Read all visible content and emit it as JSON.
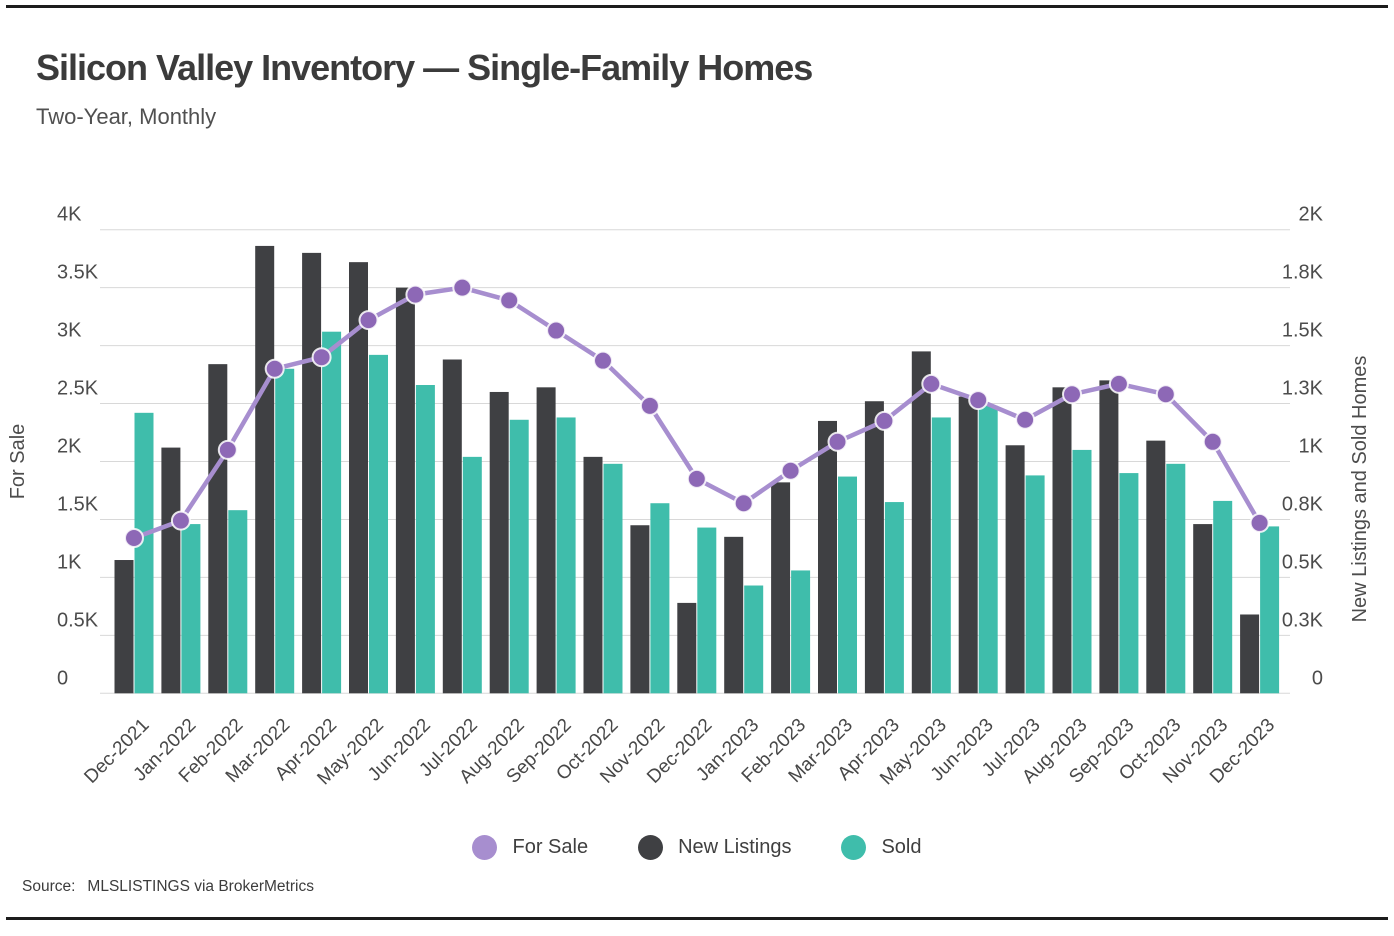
{
  "page": {
    "title": "Silicon Valley Inventory — Single-Family Homes",
    "subtitle": "Two-Year, Monthly",
    "source_label": "Source:",
    "source_value": "MLSLISTINGS via BrokerMetrics"
  },
  "chart_data": {
    "type": "bar+line combo, dual axis",
    "title": "Silicon Valley Inventory — Single-Family Homes",
    "subtitle": "Two-Year, Monthly",
    "grid": true,
    "legend_position": "bottom",
    "categories": [
      "Dec-2021",
      "Jan-2022",
      "Feb-2022",
      "Mar-2022",
      "Apr-2022",
      "May-2022",
      "Jun-2022",
      "Jul-2022",
      "Aug-2022",
      "Sep-2022",
      "Oct-2022",
      "Nov-2022",
      "Dec-2022",
      "Jan-2023",
      "Feb-2023",
      "Mar-2023",
      "Apr-2023",
      "May-2023",
      "Jun-2023",
      "Jul-2023",
      "Aug-2023",
      "Sep-2023",
      "Oct-2023",
      "Nov-2023",
      "Dec-2023"
    ],
    "left_axis": {
      "title": "For Sale",
      "min": 0,
      "max": 4000,
      "tick_step": 500,
      "tick_labels": [
        "0",
        "0.5K",
        "1K",
        "1.5K",
        "2K",
        "2.5K",
        "3K",
        "3.5K",
        "4K"
      ]
    },
    "right_axis": {
      "title": "New Listings and Sold Homes",
      "min": 0,
      "max": 2000,
      "tick_step": 250,
      "tick_labels": [
        "0",
        "0.3K",
        "0.5K",
        "0.8K",
        "1K",
        "1.3K",
        "1.5K",
        "1.8K",
        "2K"
      ]
    },
    "series": [
      {
        "name": "For Sale",
        "type": "line",
        "axis": "left",
        "color": "#a78ecf",
        "point_color": "#8d68b6",
        "values": [
          1340,
          1490,
          2100,
          2800,
          2900,
          3220,
          3440,
          3500,
          3390,
          3130,
          2870,
          2480,
          1850,
          1640,
          1920,
          2170,
          2350,
          2670,
          2530,
          2360,
          2580,
          2670,
          2580,
          2170,
          1470
        ]
      },
      {
        "name": "New Listings",
        "type": "bar",
        "axis": "right",
        "color": "#3f4043",
        "values": [
          575,
          1060,
          1420,
          1930,
          1900,
          1860,
          1750,
          1440,
          1300,
          1320,
          1020,
          725,
          390,
          675,
          910,
          1175,
          1260,
          1475,
          1280,
          1070,
          1320,
          1350,
          1090,
          730,
          340
        ]
      },
      {
        "name": "Sold",
        "type": "bar",
        "axis": "right",
        "color": "#3fbdab",
        "values": [
          1210,
          730,
          790,
          1400,
          1560,
          1460,
          1330,
          1020,
          1180,
          1190,
          990,
          820,
          715,
          465,
          530,
          935,
          825,
          1190,
          1240,
          940,
          1050,
          950,
          990,
          830,
          720
        ]
      }
    ],
    "colors": {
      "gridline": "#d8d8d8",
      "tick_text": "#4c4c4c",
      "axis_title_text": "#4c4c4c",
      "x_label_text": "#474747"
    }
  }
}
